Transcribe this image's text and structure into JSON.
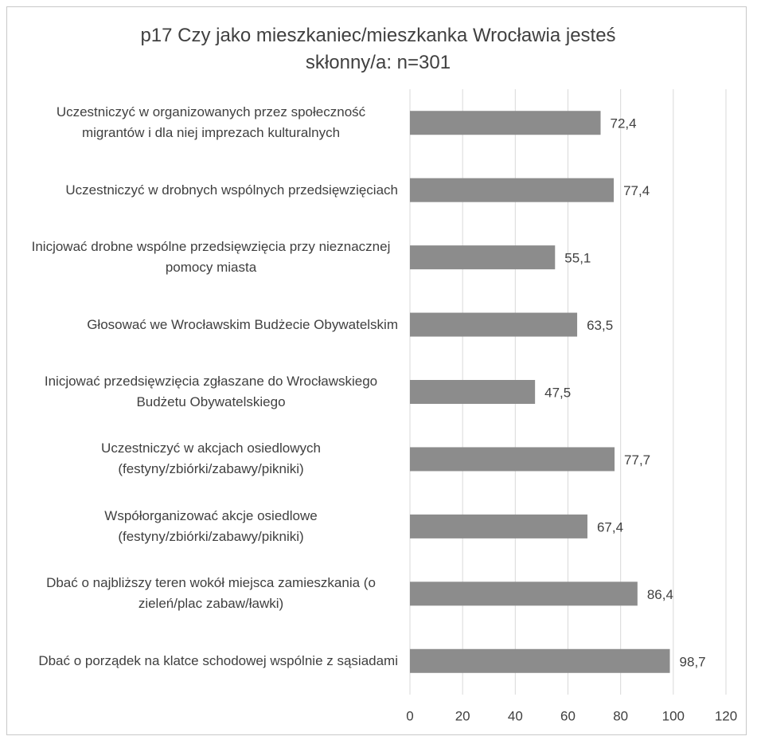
{
  "chart_data": {
    "type": "bar",
    "orientation": "horizontal",
    "title": "p17 Czy jako mieszkaniec/mieszkanka Wrocławia jesteś skłonny/a: n=301",
    "categories": [
      "Uczestniczyć w organizowanych przez społeczność migrantów i dla niej imprezach kulturalnych",
      "Uczestniczyć w drobnych wspólnych przedsięwzięciach",
      "Inicjować drobne wspólne przedsięwzięcia przy nieznacznej pomocy miasta",
      "Głosować we Wrocławskim Budżecie Obywatelskim",
      "Inicjować przedsięwzięcia zgłaszane do Wrocławskiego Budżetu Obywatelskiego",
      "Uczestniczyć w akcjach osiedlowych (festyny/zbiórki/zabawy/pikniki)",
      "Współorganizować akcje osiedlowe (festyny/zbiórki/zabawy/pikniki)",
      "Dbać o najbliższy teren wokół miejsca zamieszkania (o zieleń/plac zabaw/ławki)",
      "Dbać o porządek na klatce schodowej wspólnie z sąsiadami"
    ],
    "values": [
      72.4,
      77.4,
      55.1,
      63.5,
      47.5,
      77.7,
      67.4,
      86.4,
      98.7
    ],
    "value_labels": [
      "72,4",
      "77,4",
      "55,1",
      "63,5",
      "47,5",
      "77,7",
      "67,4",
      "86,4",
      "98,7"
    ],
    "color": "#8c8c8c",
    "xlim": [
      0,
      120
    ],
    "xticks": [
      0,
      20,
      40,
      60,
      80,
      100,
      120
    ],
    "grid": true
  }
}
